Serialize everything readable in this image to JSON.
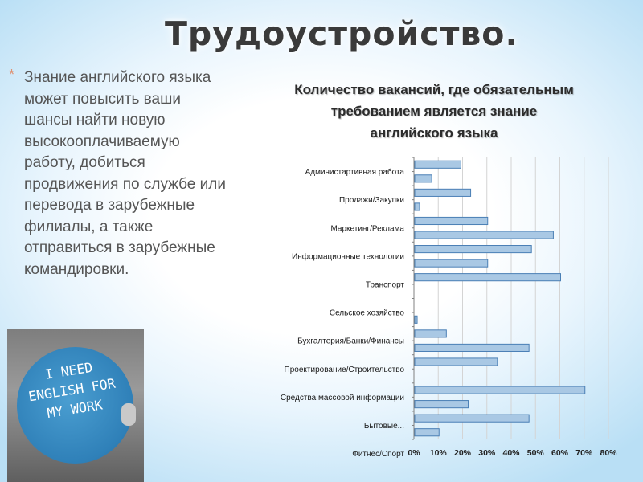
{
  "slide": {
    "title": "Трудоустройство.",
    "bullet_mark": "*",
    "bullet_text": "Знание английского языка может повысить ваши шансы найти новую высокооплачиваемую работу, добиться продвижения по службе или перевода в зарубежные филиалы, а также отправиться в зарубежные командировки.",
    "photo_sign_text": [
      "I NEED",
      "ENGLISH FOR",
      "MY WORK"
    ]
  },
  "colors": {
    "bar_fill": "#a9c8e4",
    "bar_stroke": "#4a7fb5",
    "grid": "#d4d4d4",
    "axis": "#808080"
  },
  "chart_data": {
    "type": "bar",
    "orientation": "horizontal",
    "title_lines": [
      "Количество вакансий, где обязательным",
      "требованием является знание",
      "английского языка"
    ],
    "categories_labeled": [
      "Администартивная работа",
      "Продажи/Закупки",
      "Маркетинг/Реклама",
      "Информационные технологии",
      "Транспорт",
      "Сельское хозяйство",
      "Бухгалтерия/Банки/Финансы",
      "Проектирование/Строительство",
      "Средства массовой информации",
      "Бытовые...",
      "Фитнес/Спорт"
    ],
    "values": [
      19,
      7,
      23,
      2,
      30,
      57,
      48,
      30,
      60,
      0,
      0,
      1,
      13,
      47,
      34,
      0,
      70,
      22,
      47,
      10
    ],
    "xlim": [
      0,
      80
    ],
    "xticks": [
      "0%",
      "10%",
      "20%",
      "30%",
      "40%",
      "50%",
      "60%",
      "70%",
      "80%"
    ],
    "grid": true,
    "legend": "none"
  }
}
